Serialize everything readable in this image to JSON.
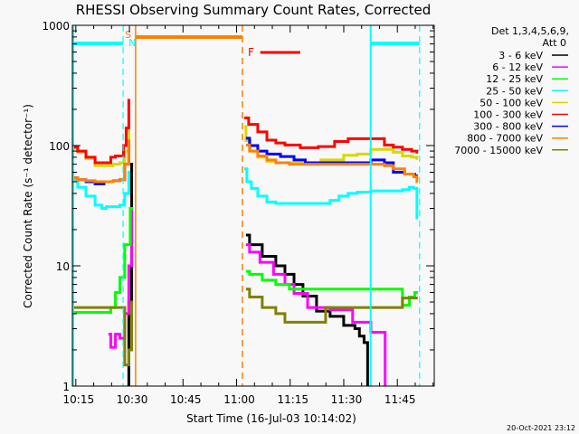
{
  "chart_data": {
    "type": "line",
    "title": "RHESSI Observing Summary Count Rates, Corrected",
    "xlabel": "Start Time (16-Jul-03 10:14:02)",
    "ylabel": "Corrected Count Rate (s⁻¹ detector⁻¹)",
    "x_units": "minutes since 10:14:02",
    "xlim": [
      0,
      101.3
    ],
    "yscale": "log",
    "ylim": [
      1,
      1000
    ],
    "x_ticks": [
      {
        "t": 0.97,
        "label": "10:15"
      },
      {
        "t": 15.97,
        "label": "10:30"
      },
      {
        "t": 30.97,
        "label": "10:45"
      },
      {
        "t": 45.97,
        "label": "11:00"
      },
      {
        "t": 60.97,
        "label": "11:15"
      },
      {
        "t": 75.97,
        "label": "11:30"
      },
      {
        "t": 90.97,
        "label": "11:45"
      }
    ],
    "y_ticks": [
      {
        "v": 1,
        "label": "1"
      },
      {
        "v": 10,
        "label": "10"
      },
      {
        "v": 100,
        "label": "100"
      },
      {
        "v": 1000,
        "label": "1000"
      }
    ],
    "legend": {
      "header": [
        "Det 1,3,4,5,6,9,",
        "Att 0"
      ],
      "placement": "right"
    },
    "series": [
      {
        "name": "3 - 6 keV",
        "color": "#000000",
        "segments": [
          [
            [
              15.4,
              1
            ],
            [
              16.2,
              5
            ],
            [
              17,
              70
            ]
          ],
          [
            [
              48.6,
              18
            ],
            [
              50.6,
              15
            ],
            [
              55.7,
              12
            ],
            [
              58.2,
              10
            ],
            [
              60.8,
              8.5
            ],
            [
              63.3,
              7
            ],
            [
              65.8,
              5.6
            ],
            [
              70.9,
              4.2
            ],
            [
              73.4,
              3.8
            ],
            [
              78.5,
              3.2
            ],
            [
              79.7,
              3
            ],
            [
              81,
              2.6
            ],
            [
              82.3,
              2.3
            ],
            [
              83,
              1
            ]
          ]
        ]
      },
      {
        "name": "6 - 12 keV",
        "color": "#ff00ff",
        "segments": [
          [
            [
              10.1,
              2.7
            ],
            [
              11.4,
              2.1
            ],
            [
              12.7,
              2.7
            ],
            [
              13.9,
              2.5
            ],
            [
              15.4,
              4
            ],
            [
              16.2,
              10
            ],
            [
              17,
              30
            ]
          ],
          [
            [
              48.6,
              15
            ],
            [
              50.6,
              13
            ],
            [
              54.4,
              10.7
            ],
            [
              58.2,
              8.5
            ],
            [
              60.8,
              7
            ],
            [
              63.3,
              5.9
            ],
            [
              68.4,
              4.5
            ],
            [
              75.9,
              4.3
            ],
            [
              81,
              3.4
            ],
            [
              86.1,
              2.8
            ],
            [
              87.3,
              2.8
            ],
            [
              87.8,
              1
            ]
          ]
        ]
      },
      {
        "name": "12 - 25 keV",
        "color": "#00ff00",
        "segments": [
          [
            [
              0.5,
              4.1
            ],
            [
              5.1,
              4.1
            ],
            [
              10.1,
              4.1
            ],
            [
              11.4,
              4.5
            ],
            [
              12.7,
              6
            ],
            [
              13.9,
              8
            ],
            [
              15.4,
              15
            ],
            [
              17,
              30
            ]
          ],
          [
            [
              48.6,
              9
            ],
            [
              50.6,
              8.5
            ],
            [
              55.7,
              7.6
            ],
            [
              58.2,
              7
            ],
            [
              63.3,
              6.4
            ],
            [
              73.4,
              6.4
            ],
            [
              81,
              6.4
            ],
            [
              91.1,
              6.4
            ],
            [
              93.7,
              4.7
            ],
            [
              95,
              5.5
            ],
            [
              96.7,
              6
            ]
          ]
        ]
      },
      {
        "name": "25 - 50 keV",
        "color": "#00ffff",
        "segments": [
          [
            [
              0.5,
              51
            ],
            [
              2.5,
              45
            ],
            [
              5.1,
              38
            ],
            [
              7.6,
              32
            ],
            [
              8.9,
              30
            ],
            [
              10.1,
              31
            ],
            [
              12.7,
              31
            ],
            [
              13.9,
              32
            ],
            [
              15.4,
              40
            ],
            [
              16.2,
              60
            ]
          ],
          [
            [
              48.1,
              64
            ],
            [
              49.6,
              50
            ],
            [
              50.6,
              44
            ],
            [
              53.2,
              38
            ],
            [
              55.7,
              34
            ],
            [
              58.2,
              33
            ],
            [
              65.8,
              33
            ],
            [
              70.9,
              33
            ],
            [
              73.4,
              35
            ],
            [
              75.9,
              38
            ],
            [
              78.5,
              40
            ],
            [
              81,
              41
            ],
            [
              86.1,
              42
            ],
            [
              91.1,
              42
            ],
            [
              93.7,
              43
            ],
            [
              94.9,
              45
            ],
            [
              96.2,
              44
            ],
            [
              96.7,
              25
            ]
          ]
        ]
      },
      {
        "name": "50 - 100 keV",
        "color": "#d8d800",
        "segments": [
          [
            [
              0.5,
              95
            ],
            [
              2.5,
              88
            ],
            [
              5.1,
              78
            ],
            [
              7.6,
              68
            ],
            [
              10.1,
              68
            ],
            [
              12.7,
              70
            ],
            [
              13.9,
              72
            ],
            [
              15.4,
              90
            ],
            [
              16.2,
              150
            ]
          ],
          [
            [
              48.1,
              144
            ],
            [
              49.1,
              110
            ],
            [
              50.6,
              90
            ],
            [
              53.2,
              80
            ],
            [
              55.7,
              74
            ],
            [
              58.2,
              72
            ],
            [
              65.8,
              72
            ],
            [
              73.4,
              76
            ],
            [
              78.5,
              83
            ],
            [
              81,
              85
            ],
            [
              86.1,
              93
            ],
            [
              88.6,
              93
            ],
            [
              91.1,
              88
            ],
            [
              93.7,
              82
            ],
            [
              96.2,
              80
            ],
            [
              96.7,
              78
            ]
          ]
        ]
      },
      {
        "name": "100 - 300 keV",
        "color": "#ff0000",
        "segments": [
          [
            [
              0.5,
              97
            ],
            [
              2.5,
              90
            ],
            [
              5.1,
              80
            ],
            [
              7.6,
              72
            ],
            [
              10.1,
              72
            ],
            [
              11.4,
              80
            ],
            [
              12.7,
              82
            ],
            [
              13.9,
              82
            ],
            [
              14.7,
              100
            ],
            [
              15.4,
              140
            ],
            [
              16.2,
              238
            ]
          ],
          [
            [
              48.1,
              170
            ],
            [
              50.6,
              150
            ],
            [
              53.2,
              130
            ],
            [
              55.7,
              111
            ],
            [
              58.2,
              105
            ],
            [
              60.8,
              101
            ],
            [
              66.8,
              96
            ],
            [
              70.9,
              98
            ],
            [
              75.9,
              108
            ],
            [
              78.5,
              114
            ],
            [
              81,
              114
            ],
            [
              86.1,
              114
            ],
            [
              88.6,
              101
            ],
            [
              91.1,
              97
            ],
            [
              93.7,
              93
            ],
            [
              96.2,
              90
            ],
            [
              96.7,
              88
            ]
          ]
        ]
      },
      {
        "name": "300 - 800 keV",
        "color": "#0000ff",
        "segments": [
          [
            [
              0.5,
              54
            ],
            [
              2.5,
              52
            ],
            [
              5.1,
              50
            ],
            [
              7.6,
              48
            ],
            [
              10.1,
              50
            ],
            [
              12.7,
              51
            ],
            [
              13.9,
              52
            ],
            [
              15.4,
              70
            ],
            [
              16.2,
              110
            ]
          ],
          [
            [
              48.6,
              115
            ],
            [
              50.6,
              100
            ],
            [
              53.2,
              90
            ],
            [
              55.7,
              85
            ],
            [
              60.8,
              81
            ],
            [
              63.3,
              76
            ],
            [
              67.1,
              72
            ],
            [
              81,
              72
            ],
            [
              86.1,
              76
            ],
            [
              88.6,
              72
            ],
            [
              91.1,
              60
            ],
            [
              94.9,
              58
            ],
            [
              96.7,
              56
            ]
          ]
        ]
      },
      {
        "name": "800 - 7000 keV",
        "color": "#ff8000",
        "segments": [
          [
            [
              0.5,
              54
            ],
            [
              2.5,
              52
            ],
            [
              5.1,
              51
            ],
            [
              7.6,
              50
            ],
            [
              10.1,
              50
            ],
            [
              12.7,
              51
            ],
            [
              13.9,
              52
            ],
            [
              15.4,
              70
            ],
            [
              16.2,
              110
            ]
          ],
          [
            [
              48.6,
              101
            ],
            [
              50.6,
              90
            ],
            [
              53.2,
              82
            ],
            [
              55.7,
              76
            ],
            [
              58.2,
              72
            ],
            [
              63.3,
              70
            ],
            [
              73.4,
              70
            ],
            [
              81,
              70
            ],
            [
              86.1,
              70
            ],
            [
              88.6,
              68
            ],
            [
              91.1,
              64
            ],
            [
              94.9,
              58
            ],
            [
              96.2,
              55
            ],
            [
              96.7,
              50
            ]
          ]
        ]
      },
      {
        "name": "7000 - 15000 keV",
        "color": "#808000",
        "segments": [
          [
            [
              0.5,
              4.5
            ],
            [
              5.1,
              4.5
            ],
            [
              10.1,
              4.5
            ],
            [
              12.7,
              4.5
            ],
            [
              13.9,
              4.5
            ],
            [
              15.4,
              1.5
            ],
            [
              16.2,
              2
            ],
            [
              17,
              5
            ]
          ],
          [
            [
              48.6,
              6.4
            ],
            [
              50.6,
              5.5
            ],
            [
              55.7,
              4.5
            ],
            [
              58.2,
              4
            ],
            [
              60.8,
              3.4
            ],
            [
              68.4,
              3.4
            ],
            [
              73.4,
              4.5
            ],
            [
              81,
              4.5
            ],
            [
              91.1,
              4.5
            ],
            [
              93.7,
              5.4
            ],
            [
              96.7,
              5.4
            ]
          ]
        ]
      }
    ],
    "annotations": {
      "saa_label": "S",
      "night_label": "N",
      "flare_label": "F",
      "night_lines_solid": [
        0.25,
        83.5
      ],
      "night_lines_dashed": [
        14.2,
        97.2
      ],
      "night_bars": [
        [
          0.25,
          14.2
        ],
        [
          83.5,
          97.2
        ]
      ],
      "saa_line_solid": 17.7,
      "saa_line_dashed": 47.6,
      "saa_bar": [
        17.7,
        47.6
      ],
      "flare_bar": [
        52.6,
        63.8
      ],
      "colors": {
        "night": "#00ffff",
        "saa": "#ff8000",
        "flare": "#ff0000"
      }
    }
  },
  "footer": {
    "timestamp": "20-Oct-2021 23:12"
  }
}
